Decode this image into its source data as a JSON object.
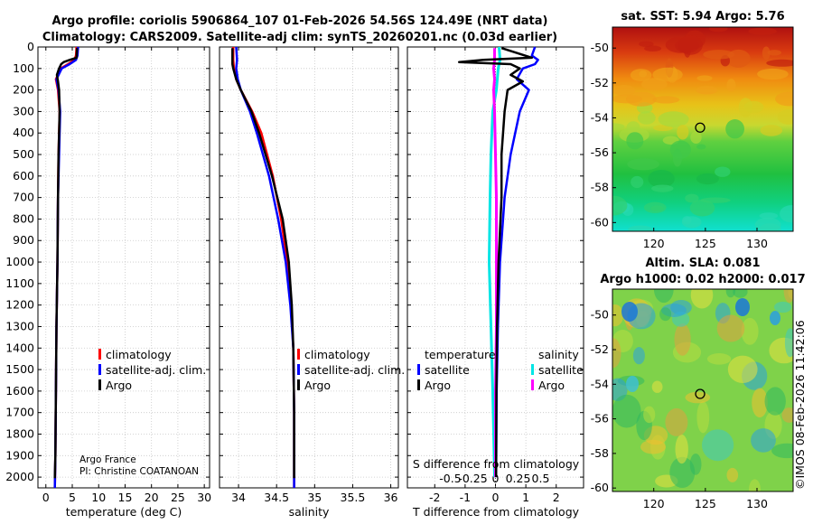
{
  "header": {
    "line1": "Argo profile: coriolis 5906864_107 01-Feb-2026 54.56S 124.49E (NRT data)",
    "line2": "Climatology: CARS2009. Satellite-adj clim: synTS_20260201.nc (0.03d earlier)"
  },
  "credits": {
    "org": "Argo France",
    "pi": "PI: Christine COATANOAN"
  },
  "watermark": "©IMOS 08-Feb-2026 11:42:06",
  "colors": {
    "climatology": "#ff0000",
    "satellite": "#0000ff",
    "argo": "#000000",
    "sat_s": "#00e5e5",
    "argo_s": "#ff00ff"
  },
  "chart_data": [
    {
      "id": "temperature-profile",
      "type": "line",
      "xlabel": "temperature (deg C)",
      "xlim": [
        -1.5,
        31
      ],
      "xticks": [
        0,
        5,
        10,
        15,
        20,
        25,
        30
      ],
      "xtick_labels": [
        "0",
        "5",
        "10",
        "15",
        "20",
        "25",
        "30"
      ],
      "ylim": [
        0,
        2050
      ],
      "yticks": [
        0,
        100,
        200,
        300,
        400,
        500,
        600,
        700,
        800,
        900,
        1000,
        1100,
        1200,
        1300,
        1400,
        1500,
        1600,
        1700,
        1800,
        1900,
        2000
      ],
      "ytick_labels": [
        "0",
        "100",
        "200",
        "300",
        "400",
        "500",
        "600",
        "700",
        "800",
        "900",
        "1000",
        "1100",
        "1200",
        "1300",
        "1400",
        "1500",
        "1600",
        "1700",
        "1800",
        "1900",
        "2000"
      ],
      "legend": [
        "climatology",
        "satellite-adj. clim.",
        "Argo"
      ],
      "series": [
        {
          "name": "climatology",
          "color": "#ff0000",
          "depth": [
            0,
            40,
            60,
            80,
            100,
            150,
            200,
            300,
            500,
            700,
            1000,
            1300,
            1600,
            1900,
            2050
          ],
          "values": [
            5.8,
            5.7,
            5.4,
            4.2,
            2.8,
            1.9,
            2.3,
            2.6,
            2.4,
            2.3,
            2.2,
            2.0,
            1.9,
            1.8,
            1.7
          ]
        },
        {
          "name": "satellite-adj. clim.",
          "color": "#0000ff",
          "depth": [
            0,
            40,
            60,
            80,
            100,
            150,
            200,
            300,
            500,
            700,
            1000,
            1300,
            1600,
            1900,
            2050
          ],
          "values": [
            6.1,
            6.0,
            5.7,
            4.5,
            3.0,
            2.0,
            2.4,
            2.7,
            2.5,
            2.3,
            2.2,
            2.0,
            1.9,
            1.8,
            1.7
          ]
        },
        {
          "name": "Argo",
          "color": "#000000",
          "depth": [
            5,
            50,
            60,
            70,
            80,
            100,
            130,
            160,
            200,
            300,
            500,
            700,
            1000,
            1300,
            1600,
            1900,
            2005
          ],
          "values": [
            5.9,
            5.8,
            4.5,
            3.4,
            2.9,
            2.5,
            2.1,
            2.3,
            2.5,
            2.6,
            2.4,
            2.3,
            2.2,
            2.0,
            1.9,
            1.8,
            1.7
          ]
        }
      ]
    },
    {
      "id": "salinity-profile",
      "type": "line",
      "xlabel": "salinity",
      "xlim": [
        33.75,
        36.1
      ],
      "xticks": [
        34,
        34.5,
        35,
        35.5,
        36
      ],
      "xtick_labels": [
        "34",
        "34.5",
        "35",
        "35.5",
        "36"
      ],
      "ylim": [
        0,
        2050
      ],
      "legend": [
        "climatology",
        "satellite-adj. clim.",
        "Argo"
      ],
      "series": [
        {
          "name": "climatology",
          "color": "#ff0000",
          "depth": [
            0,
            60,
            100,
            150,
            200,
            300,
            400,
            600,
            800,
            1000,
            1200,
            1400,
            1700,
            2050
          ],
          "values": [
            33.93,
            33.93,
            33.94,
            33.97,
            34.03,
            34.18,
            34.3,
            34.45,
            34.56,
            34.64,
            34.69,
            34.72,
            34.73,
            34.73
          ]
        },
        {
          "name": "satellite-adj. clim.",
          "color": "#0000ff",
          "depth": [
            0,
            60,
            100,
            150,
            200,
            300,
            400,
            600,
            800,
            1000,
            1200,
            1400,
            1700,
            2050
          ],
          "values": [
            33.97,
            33.98,
            33.97,
            33.99,
            34.03,
            34.15,
            34.24,
            34.4,
            34.52,
            34.62,
            34.68,
            34.72,
            34.73,
            34.73
          ]
        },
        {
          "name": "Argo",
          "color": "#000000",
          "depth": [
            5,
            80,
            100,
            150,
            200,
            300,
            400,
            600,
            800,
            1000,
            1200,
            1400,
            1700,
            2005
          ],
          "values": [
            33.92,
            33.92,
            33.93,
            33.97,
            34.03,
            34.17,
            34.27,
            34.44,
            34.58,
            34.66,
            34.7,
            34.72,
            34.73,
            34.73
          ]
        }
      ]
    },
    {
      "id": "difference-profile",
      "type": "line",
      "xlabel": "T difference from climatology",
      "xlim": [
        -2.9,
        2.9
      ],
      "xticks": [
        -2,
        -1,
        0,
        1,
        2
      ],
      "xtick_labels": [
        "-2",
        "-1",
        "0",
        "1",
        "2"
      ],
      "xlabel2": "S difference from climatology",
      "xticks2": [
        -0.5,
        -0.25,
        0,
        0.25,
        0.5
      ],
      "xtick2_labels": [
        "-0.5",
        "-0.25",
        "0",
        "0.25",
        "0.5"
      ],
      "ylim": [
        0,
        2050
      ],
      "legend_titles": [
        "temperature",
        "salinity"
      ],
      "legend": [
        "satellite",
        "Argo",
        "satellite",
        "Argo"
      ],
      "series": [
        {
          "name": "T satellite",
          "color": "#0000ff",
          "depth": [
            0,
            40,
            60,
            80,
            100,
            150,
            200,
            300,
            500,
            700,
            1000,
            1300,
            1600,
            2000
          ],
          "values": [
            1.3,
            1.2,
            1.4,
            1.3,
            0.9,
            0.7,
            1.1,
            0.8,
            0.5,
            0.3,
            0.15,
            0.08,
            0.04,
            0.02
          ]
        },
        {
          "name": "T Argo",
          "color": "#000000",
          "depth": [
            5,
            50,
            60,
            70,
            80,
            100,
            130,
            160,
            200,
            300,
            500,
            700,
            1000,
            1300,
            1600,
            2000
          ],
          "values": [
            0.2,
            1.2,
            -0.4,
            -1.2,
            0.5,
            0.8,
            0.5,
            0.9,
            0.4,
            0.3,
            0.2,
            0.2,
            0.1,
            0.05,
            0.03,
            0.02
          ]
        },
        {
          "name": "S satellite",
          "color": "#00e5e5",
          "depth": [
            0,
            60,
            100,
            200,
            300,
            500,
            700,
            1000,
            1300,
            1600,
            2000
          ],
          "values": [
            0.04,
            0.05,
            0.03,
            0.01,
            -0.03,
            -0.05,
            -0.06,
            -0.07,
            -0.05,
            -0.03,
            -0.01
          ]
        },
        {
          "name": "S Argo",
          "color": "#ff00ff",
          "depth": [
            5,
            60,
            100,
            150,
            200,
            300,
            500,
            700,
            1000,
            1300,
            1600,
            2000
          ],
          "values": [
            -0.01,
            -0.01,
            -0.02,
            -0.01,
            -0.02,
            -0.01,
            0.0,
            0.01,
            0.01,
            0.01,
            0.0,
            0.0
          ]
        }
      ]
    },
    {
      "id": "sst-map",
      "type": "heatmap",
      "title": "sat. SST: 5.94 Argo: 5.76",
      "xlim": [
        116,
        133.5
      ],
      "ylim": [
        -60.5,
        -48.8
      ],
      "xticks": [
        120,
        125,
        130
      ],
      "xtick_labels": [
        "120",
        "125",
        "130"
      ],
      "yticks": [
        -50,
        -52,
        -54,
        -56,
        -58,
        -60
      ],
      "ytick_labels": [
        "-50",
        "-52",
        "-54",
        "-56",
        "-58",
        "-60"
      ],
      "marker": {
        "lon": 124.49,
        "lat": -54.56
      }
    },
    {
      "id": "sla-map",
      "type": "heatmap",
      "title": "Altim. SLA: 0.081",
      "subtitle": "Argo h1000: 0.02 h2000: 0.017",
      "xlim": [
        116,
        133.5
      ],
      "ylim": [
        -60.2,
        -48.5
      ],
      "xticks": [
        120,
        125,
        130
      ],
      "xtick_labels": [
        "120",
        "125",
        "130"
      ],
      "yticks": [
        -50,
        -52,
        -54,
        -56,
        -58,
        -60
      ],
      "ytick_labels": [
        "-50",
        "-52",
        "-54",
        "-56",
        "-58",
        "-60"
      ],
      "marker": {
        "lon": 124.49,
        "lat": -54.56
      }
    }
  ]
}
